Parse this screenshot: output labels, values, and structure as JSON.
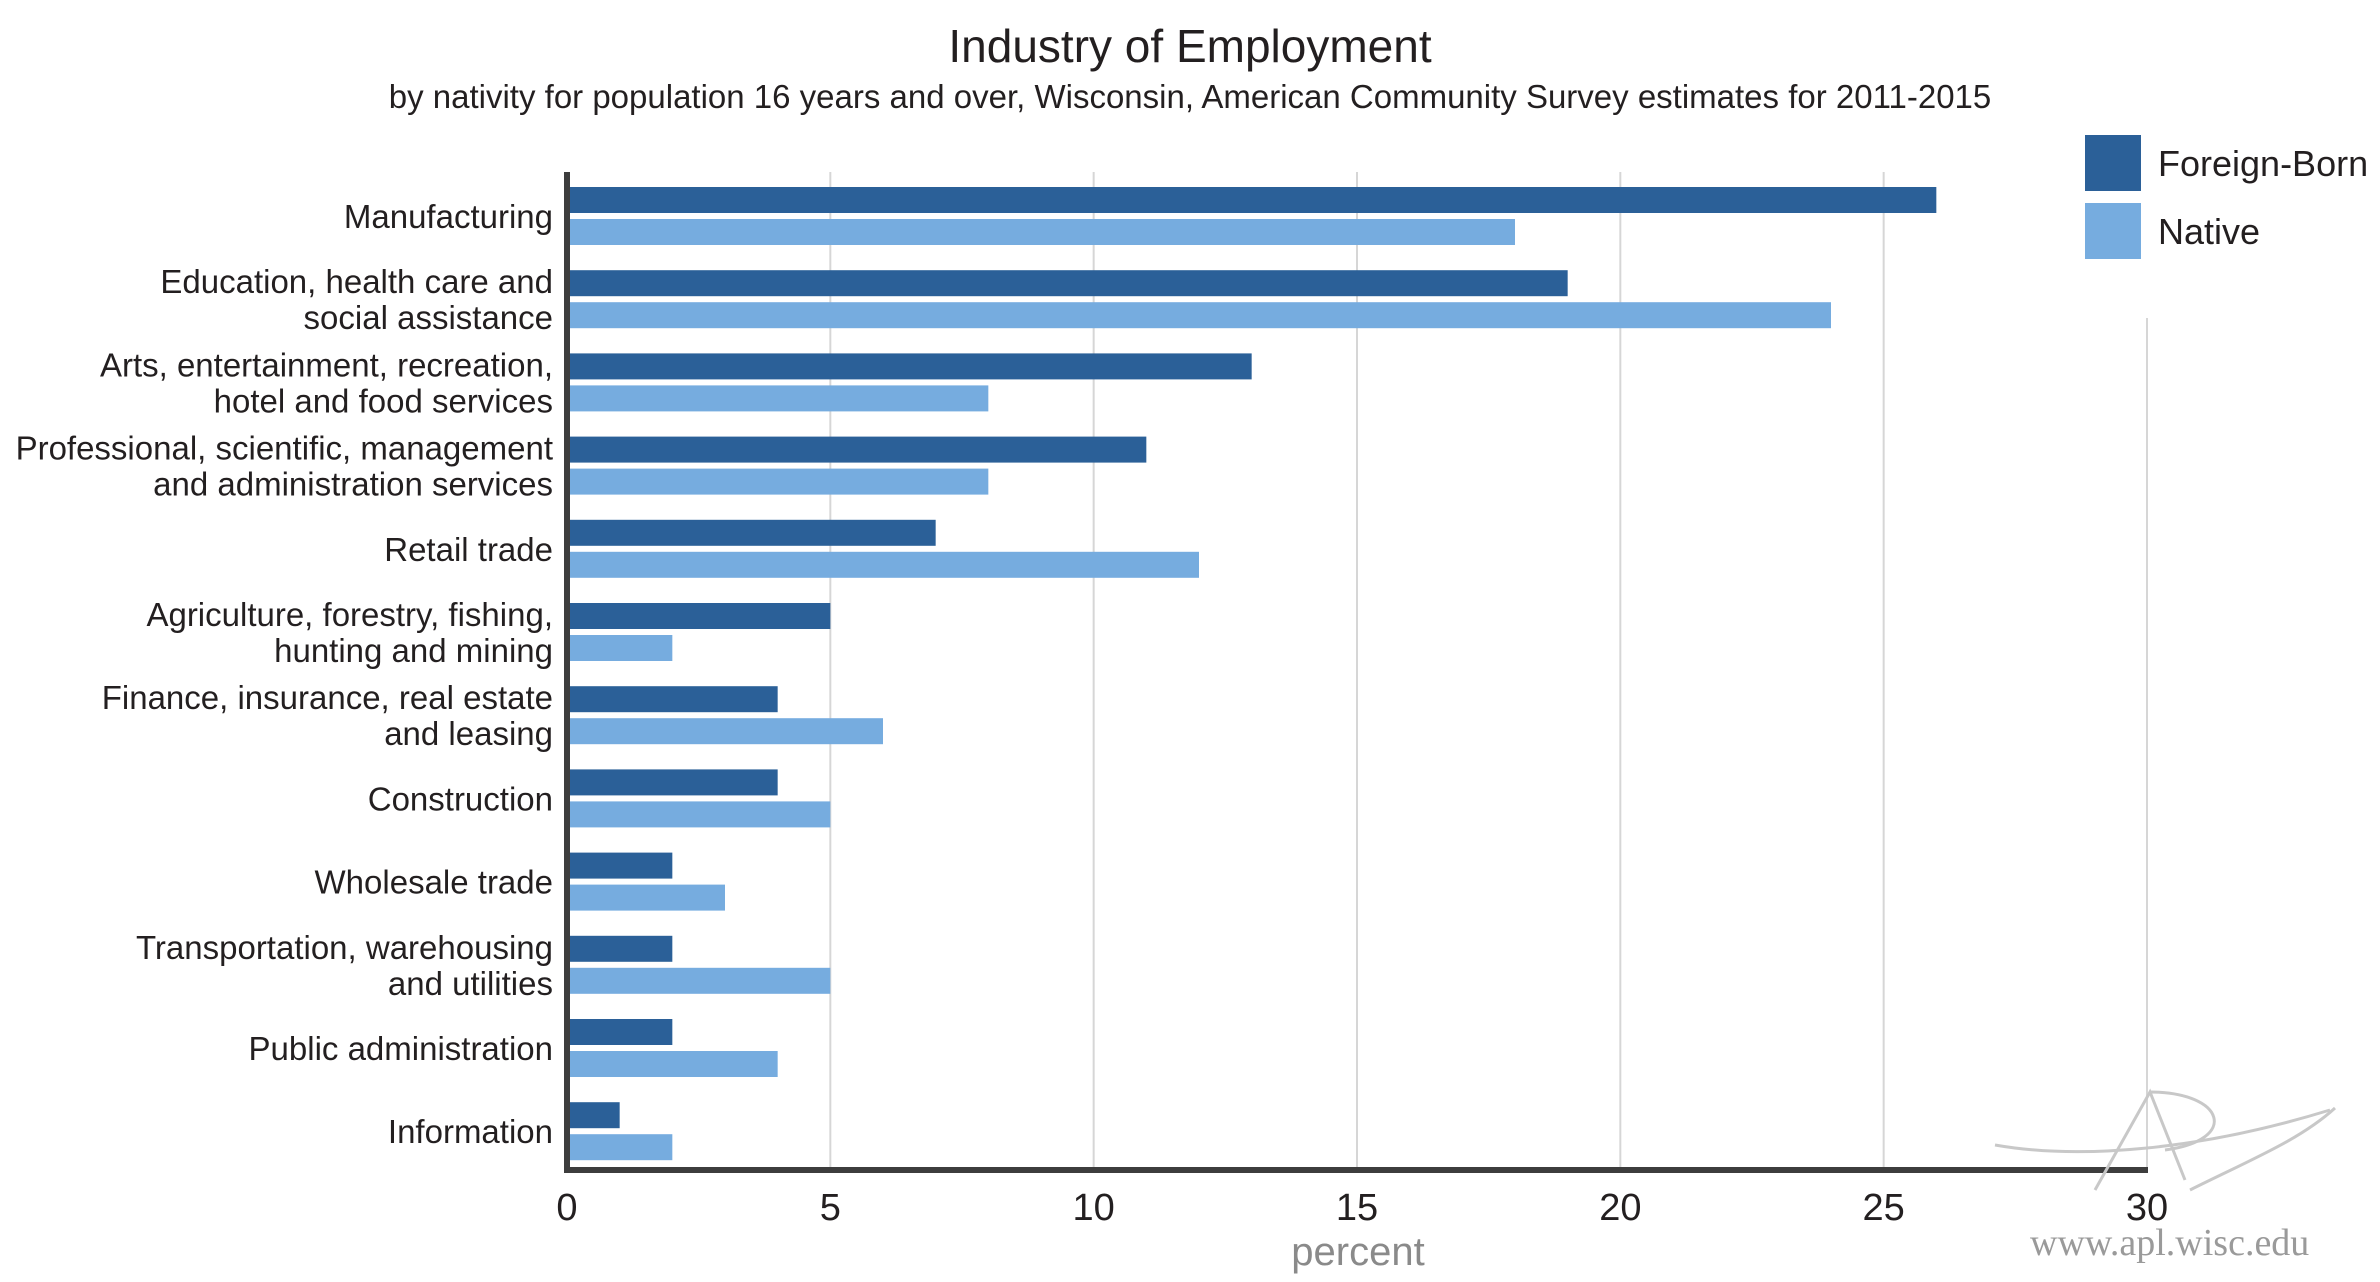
{
  "chart_data": {
    "type": "bar",
    "orientation": "horizontal",
    "title": "Industry of Employment",
    "subtitle": "by nativity for population 16 years and over, Wisconsin, American Community Survey estimates for 2011-2015",
    "xlabel": "percent",
    "ylabel": "",
    "xlim": [
      0,
      30
    ],
    "xticks": [
      0,
      5,
      10,
      15,
      20,
      25,
      30
    ],
    "grid": true,
    "legend_position": "top-right",
    "categories": [
      [
        "Manufacturing"
      ],
      [
        "Education, health care and",
        "social assistance"
      ],
      [
        "Arts, entertainment, recreation,",
        "hotel and food services"
      ],
      [
        "Professional, scientific, management",
        "and administration services"
      ],
      [
        "Retail trade"
      ],
      [
        "Agriculture, forestry, fishing,",
        "hunting and mining"
      ],
      [
        "Finance, insurance, real estate",
        "and leasing"
      ],
      [
        "Construction"
      ],
      [
        "Wholesale trade"
      ],
      [
        "Transportation, warehousing",
        "and utilities"
      ],
      [
        "Public administration"
      ],
      [
        "Information"
      ]
    ],
    "series": [
      {
        "name": "Foreign-Born",
        "color": "#2b6098",
        "values": [
          26,
          19,
          13,
          11,
          7,
          5,
          4,
          4,
          2,
          2,
          2,
          1
        ]
      },
      {
        "name": "Native",
        "color": "#76acdf",
        "values": [
          18,
          24,
          8,
          8,
          12,
          2,
          6,
          5,
          3,
          5,
          4,
          2
        ]
      }
    ]
  },
  "watermark": {
    "text": "www.apl.wisc.edu"
  }
}
